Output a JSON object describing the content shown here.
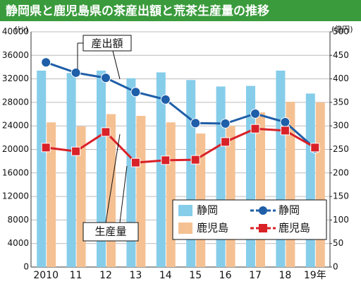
{
  "chart_data": {
    "type": "bar",
    "title": "静岡県と鹿児島県の茶産出額と荒茶生産量の推移",
    "y_unit": "(ﾄﾝ)",
    "y2_unit": "(億円)",
    "annotations": [
      "産出額",
      "生産量"
    ],
    "categories": [
      "2010",
      "11",
      "12",
      "13",
      "14",
      "15",
      "16",
      "17",
      "18",
      "19年"
    ],
    "series": [
      {
        "name": "静岡",
        "type": "bar",
        "axis": "y",
        "color": "#86cdea",
        "values": [
          33400,
          33000,
          33400,
          32100,
          33100,
          31800,
          30700,
          30800,
          33400,
          29500
        ]
      },
      {
        "name": "鹿児島",
        "type": "bar",
        "axis": "y",
        "color": "#f5c193",
        "values": [
          24600,
          23900,
          26000,
          25700,
          24600,
          22700,
          24000,
          26300,
          28100,
          28000
        ]
      },
      {
        "name": "静岡",
        "type": "line",
        "axis": "y2",
        "color": "#1f5ea8",
        "marker": "circle",
        "values": [
          435,
          413,
          402,
          372,
          356,
          306,
          305,
          326,
          308,
          252
        ]
      },
      {
        "name": "鹿児島",
        "type": "line",
        "axis": "y2",
        "color": "#d92128",
        "marker": "square",
        "values": [
          254,
          246,
          287,
          222,
          227,
          228,
          266,
          294,
          290,
          254
        ]
      }
    ],
    "ylim": [
      0,
      40000
    ],
    "yticks": [
      0,
      4000,
      8000,
      12000,
      16000,
      20000,
      24000,
      28000,
      32000,
      36000,
      40000
    ],
    "y2lim": [
      0,
      500
    ],
    "y2ticks": [
      0,
      50,
      100,
      150,
      200,
      250,
      300,
      350,
      400,
      450,
      500
    ],
    "grid": true
  }
}
